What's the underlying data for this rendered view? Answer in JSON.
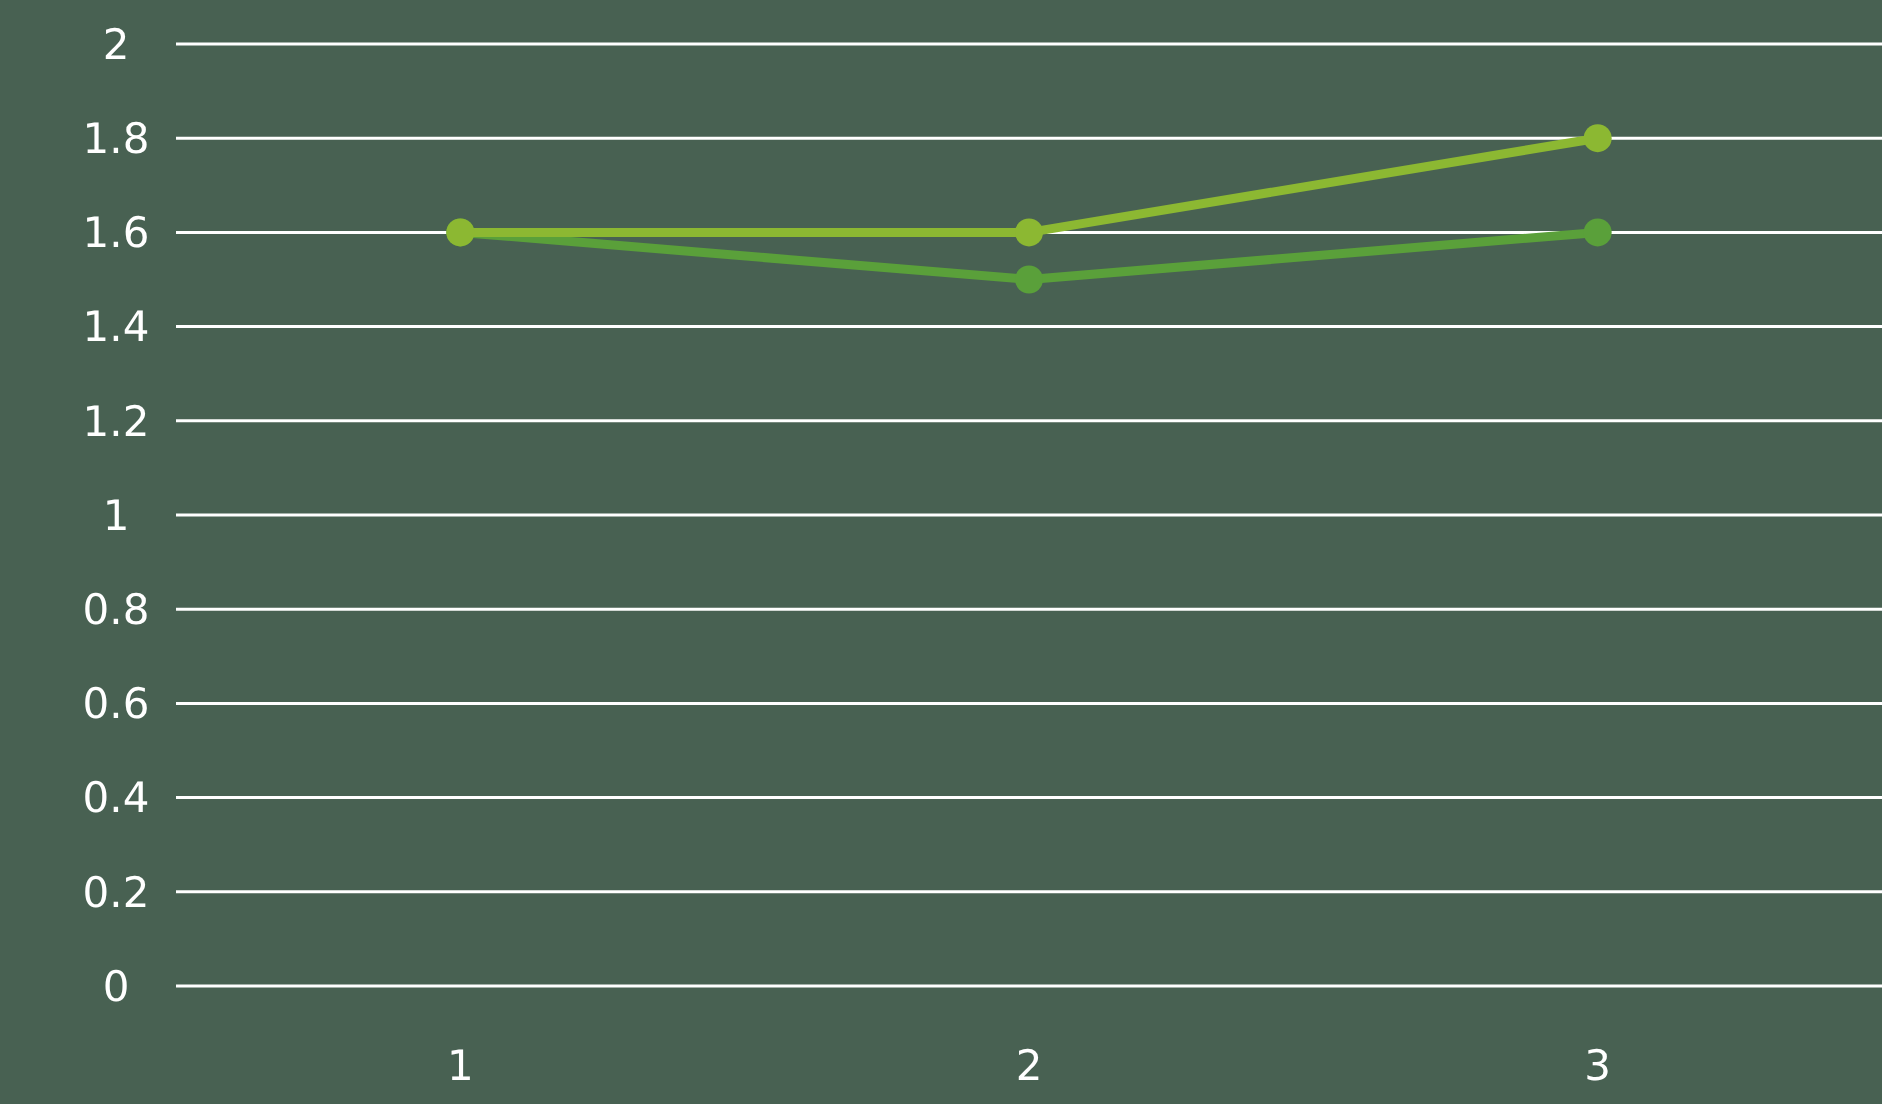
{
  "chart_data": {
    "type": "line",
    "categories": [
      "1",
      "2",
      "3"
    ],
    "series": [
      {
        "color": "#8cb832",
        "values": [
          1.6,
          1.6,
          1.8
        ]
      },
      {
        "color": "#5aa03a",
        "values": [
          1.6,
          1.5,
          1.6
        ]
      }
    ],
    "ylim": [
      0,
      2
    ],
    "yticks": [
      0,
      0.2,
      0.4,
      0.6,
      0.8,
      1,
      1.2,
      1.4,
      1.6,
      1.8,
      2
    ],
    "grid": "y",
    "marker": "circle",
    "line_style": "solid"
  }
}
